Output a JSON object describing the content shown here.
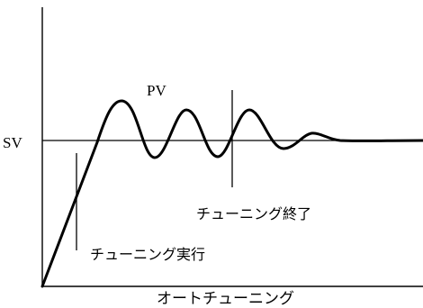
{
  "diagram": {
    "pv_label": "PV",
    "sv_label": "SV",
    "tuning_start_label": "チューニング実行",
    "tuning_end_label": "チューニング終了",
    "caption": "オートチューニング"
  },
  "colors": {
    "line": "#000000",
    "background": "#ffffff"
  }
}
